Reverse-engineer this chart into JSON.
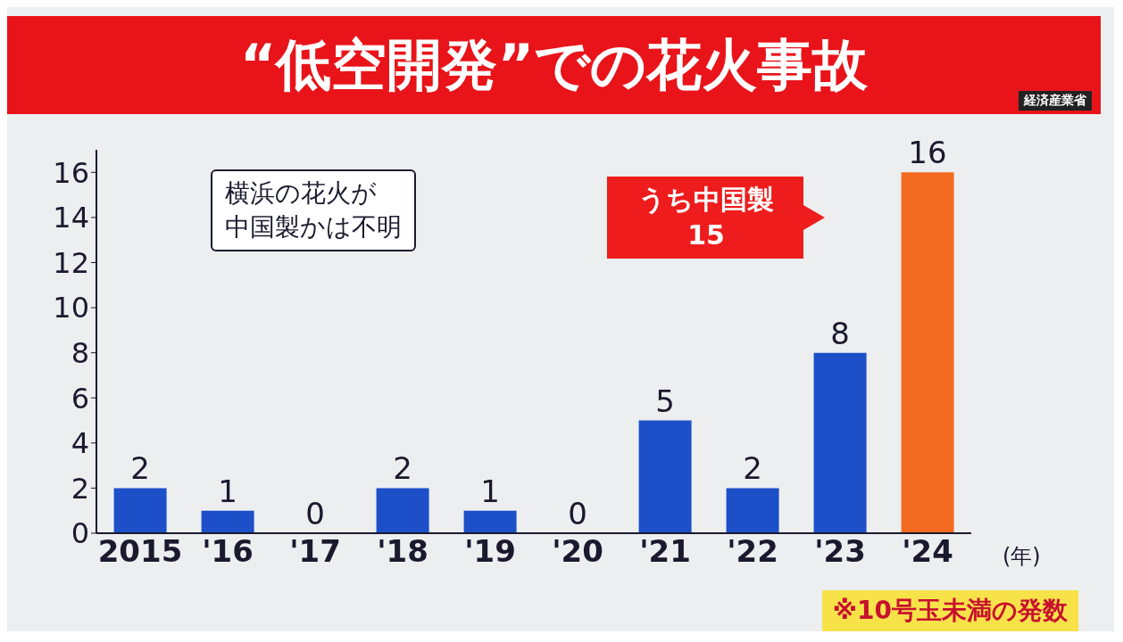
{
  "chart_data": {
    "type": "bar",
    "title": "“低空開発”での花火事故",
    "subtitle": "経済産業省",
    "xlabel": "(年)",
    "categories": [
      "2015",
      "'16",
      "'17",
      "'18",
      "'19",
      "'20",
      "'21",
      "'22",
      "'23",
      "'24"
    ],
    "values": [
      2,
      1,
      0,
      2,
      1,
      0,
      5,
      2,
      8,
      16
    ],
    "colors": [
      "#1d4fc8",
      "#1d4fc8",
      "#1d4fc8",
      "#1d4fc8",
      "#1d4fc8",
      "#1d4fc8",
      "#1d4fc8",
      "#1d4fc8",
      "#1d4fc8",
      "#f36b21"
    ],
    "ylim": [
      0,
      17
    ],
    "yticks": [
      0,
      2,
      4,
      6,
      8,
      10,
      12,
      14,
      16
    ],
    "data_labels": true,
    "annotations": [
      "横浜の花火が",
      "中国製かは不明",
      "うち中国製15",
      "※10号玉未満の発数"
    ]
  }
}
